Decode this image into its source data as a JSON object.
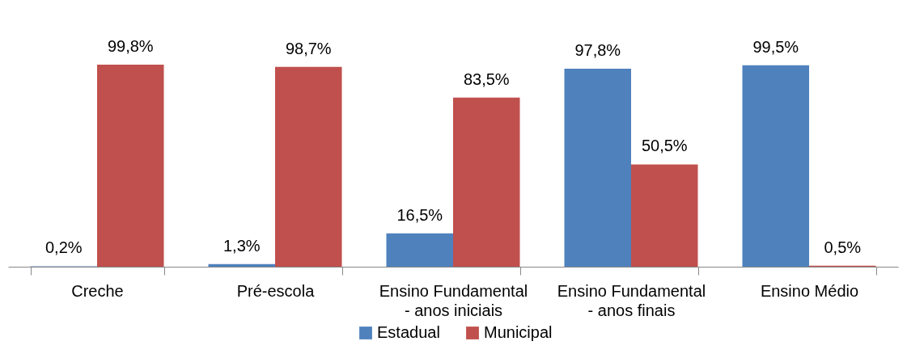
{
  "chart_data": {
    "type": "bar",
    "categories": [
      "Creche",
      "Pré-escola",
      "Ensino Fundamental - anos iniciais",
      "Ensino Fundamental - anos finais",
      "Ensino Médio"
    ],
    "series": [
      {
        "name": "Estadual",
        "color": "#4f81bd",
        "values": [
          0.2,
          1.3,
          16.5,
          97.8,
          99.5
        ],
        "value_labels": [
          "0,2%",
          "1,3%",
          "16,5%",
          "97,8%",
          "99,5%"
        ]
      },
      {
        "name": "Municipal",
        "color": "#c0504d",
        "values": [
          99.8,
          98.7,
          83.5,
          50.5,
          0.5
        ],
        "value_labels": [
          "99,8%",
          "98,7%",
          "83,5%",
          "50,5%",
          "0,5%"
        ]
      }
    ],
    "legend": "bottom",
    "grid": false
  }
}
